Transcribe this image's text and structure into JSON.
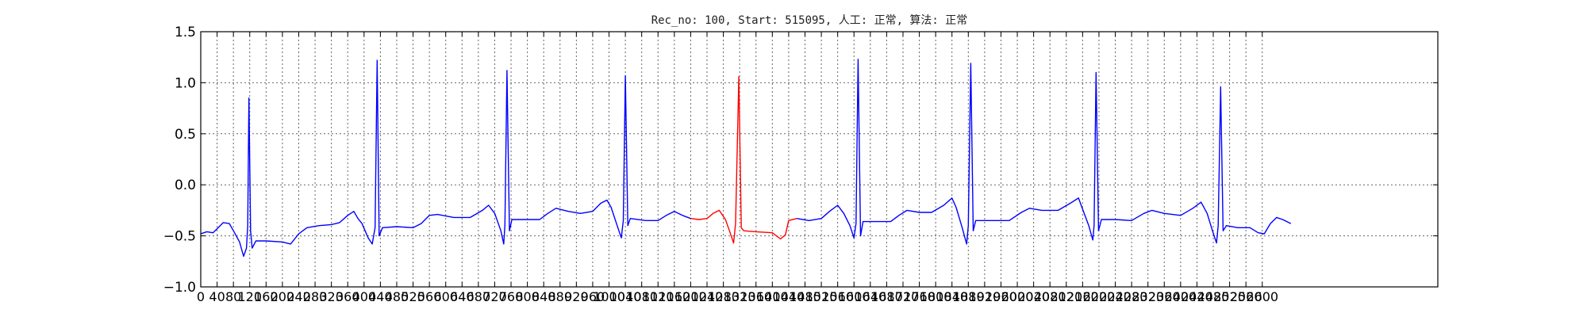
{
  "chart_data": {
    "type": "line",
    "title": "Rec_no: 100, Start: 515095, 人工: 正常, 算法: 正常",
    "xlabel": "",
    "ylabel": "",
    "xlim": [
      0,
      3030
    ],
    "ylim": [
      -1.0,
      1.5
    ],
    "grid": true,
    "y_ticks": [
      -1.0,
      -0.5,
      0.0,
      0.5,
      1.0,
      1.5
    ],
    "y_tick_labels": [
      "−1.0",
      "−0.5",
      "0.0",
      "0.5",
      "1.0",
      "1.5"
    ],
    "x_ticks": [
      0,
      40,
      80,
      120,
      160,
      200,
      240,
      280,
      320,
      360,
      400,
      440,
      480,
      520,
      560,
      600,
      640,
      680,
      720,
      760,
      800,
      840,
      880,
      920,
      960,
      1000,
      1040,
      1080,
      1120,
      1160,
      1200,
      1240,
      1280,
      1320,
      1360,
      1400,
      1440,
      1480,
      1520,
      1560,
      1600,
      1640,
      1680,
      1720,
      1760,
      1800,
      1840,
      1880,
      1920,
      1960,
      2000,
      2040,
      2080,
      2120,
      2160,
      2200,
      2240,
      2280,
      2320,
      2360,
      2400,
      2440,
      2480,
      2520,
      2560,
      2600
    ],
    "series": [
      {
        "color": "#0000ff",
        "points": [
          [
            0,
            -0.48
          ],
          [
            15,
            -0.46
          ],
          [
            30,
            -0.47
          ],
          [
            40,
            -0.43
          ],
          [
            55,
            -0.37
          ],
          [
            70,
            -0.38
          ],
          [
            80,
            -0.45
          ],
          [
            95,
            -0.56
          ],
          [
            105,
            -0.7
          ],
          [
            112,
            -0.62
          ],
          [
            115,
            -0.4
          ],
          [
            118,
            0.85
          ],
          [
            122,
            -0.45
          ],
          [
            126,
            -0.62
          ],
          [
            135,
            -0.55
          ],
          [
            160,
            -0.55
          ],
          [
            200,
            -0.56
          ],
          [
            220,
            -0.58
          ],
          [
            240,
            -0.48
          ],
          [
            260,
            -0.42
          ],
          [
            290,
            -0.4
          ],
          [
            320,
            -0.39
          ],
          [
            340,
            -0.37
          ],
          [
            360,
            -0.3
          ],
          [
            375,
            -0.26
          ],
          [
            385,
            -0.33
          ],
          [
            395,
            -0.38
          ],
          [
            410,
            -0.52
          ],
          [
            420,
            -0.58
          ],
          [
            427,
            -0.42
          ],
          [
            432,
            1.22
          ],
          [
            437,
            -0.5
          ],
          [
            445,
            -0.42
          ],
          [
            480,
            -0.41
          ],
          [
            520,
            -0.42
          ],
          [
            540,
            -0.38
          ],
          [
            560,
            -0.3
          ],
          [
            580,
            -0.29
          ],
          [
            620,
            -0.32
          ],
          [
            660,
            -0.32
          ],
          [
            690,
            -0.25
          ],
          [
            705,
            -0.2
          ],
          [
            720,
            -0.28
          ],
          [
            735,
            -0.45
          ],
          [
            742,
            -0.58
          ],
          [
            745,
            -0.4
          ],
          [
            750,
            1.12
          ],
          [
            756,
            -0.45
          ],
          [
            762,
            -0.34
          ],
          [
            800,
            -0.34
          ],
          [
            830,
            -0.34
          ],
          [
            850,
            -0.28
          ],
          [
            870,
            -0.23
          ],
          [
            900,
            -0.26
          ],
          [
            930,
            -0.28
          ],
          [
            960,
            -0.26
          ],
          [
            980,
            -0.18
          ],
          [
            995,
            -0.15
          ],
          [
            1005,
            -0.22
          ],
          [
            1020,
            -0.4
          ],
          [
            1030,
            -0.52
          ],
          [
            1035,
            -0.35
          ],
          [
            1040,
            1.07
          ],
          [
            1046,
            -0.4
          ],
          [
            1052,
            -0.33
          ],
          [
            1090,
            -0.35
          ],
          [
            1120,
            -0.35
          ],
          [
            1140,
            -0.3
          ],
          [
            1160,
            -0.26
          ],
          [
            1180,
            -0.3
          ],
          [
            1200,
            -0.33
          ]
        ]
      },
      {
        "color": "#ff0000",
        "points": [
          [
            1200,
            -0.33
          ],
          [
            1220,
            -0.34
          ],
          [
            1240,
            -0.33
          ],
          [
            1255,
            -0.28
          ],
          [
            1270,
            -0.25
          ],
          [
            1285,
            -0.34
          ],
          [
            1295,
            -0.45
          ],
          [
            1305,
            -0.57
          ],
          [
            1310,
            -0.38
          ],
          [
            1318,
            1.06
          ],
          [
            1324,
            -0.42
          ],
          [
            1330,
            -0.45
          ],
          [
            1360,
            -0.46
          ],
          [
            1400,
            -0.47
          ],
          [
            1420,
            -0.53
          ],
          [
            1432,
            -0.49
          ],
          [
            1440,
            -0.35
          ],
          [
            1460,
            -0.33
          ]
        ]
      },
      {
        "color": "#0000ff",
        "points": [
          [
            1460,
            -0.33
          ],
          [
            1490,
            -0.35
          ],
          [
            1520,
            -0.33
          ],
          [
            1540,
            -0.26
          ],
          [
            1560,
            -0.2
          ],
          [
            1575,
            -0.28
          ],
          [
            1590,
            -0.4
          ],
          [
            1600,
            -0.52
          ],
          [
            1605,
            -0.38
          ],
          [
            1610,
            1.23
          ],
          [
            1616,
            -0.5
          ],
          [
            1622,
            -0.36
          ],
          [
            1660,
            -0.36
          ],
          [
            1690,
            -0.36
          ],
          [
            1710,
            -0.3
          ],
          [
            1730,
            -0.25
          ],
          [
            1760,
            -0.27
          ],
          [
            1790,
            -0.27
          ],
          [
            1820,
            -0.2
          ],
          [
            1840,
            -0.13
          ],
          [
            1850,
            -0.22
          ],
          [
            1865,
            -0.42
          ],
          [
            1876,
            -0.58
          ],
          [
            1880,
            -0.4
          ],
          [
            1886,
            1.19
          ],
          [
            1892,
            -0.45
          ],
          [
            1898,
            -0.35
          ],
          [
            1940,
            -0.35
          ],
          [
            1980,
            -0.35
          ],
          [
            2010,
            -0.27
          ],
          [
            2030,
            -0.23
          ],
          [
            2060,
            -0.25
          ],
          [
            2100,
            -0.25
          ],
          [
            2130,
            -0.18
          ],
          [
            2150,
            -0.13
          ],
          [
            2160,
            -0.24
          ],
          [
            2175,
            -0.4
          ],
          [
            2185,
            -0.54
          ],
          [
            2188,
            -0.4
          ],
          [
            2193,
            1.1
          ],
          [
            2199,
            -0.45
          ],
          [
            2206,
            -0.34
          ],
          [
            2240,
            -0.34
          ],
          [
            2280,
            -0.35
          ],
          [
            2310,
            -0.28
          ],
          [
            2330,
            -0.25
          ],
          [
            2360,
            -0.28
          ],
          [
            2400,
            -0.3
          ],
          [
            2430,
            -0.23
          ],
          [
            2450,
            -0.17
          ],
          [
            2465,
            -0.28
          ],
          [
            2478,
            -0.45
          ],
          [
            2488,
            -0.57
          ],
          [
            2492,
            -0.4
          ],
          [
            2498,
            0.96
          ],
          [
            2504,
            -0.45
          ],
          [
            2512,
            -0.4
          ],
          [
            2540,
            -0.42
          ],
          [
            2570,
            -0.42
          ],
          [
            2590,
            -0.47
          ],
          [
            2605,
            -0.48
          ],
          [
            2620,
            -0.38
          ],
          [
            2635,
            -0.32
          ],
          [
            2650,
            -0.34
          ],
          [
            2670,
            -0.38
          ]
        ]
      }
    ]
  }
}
